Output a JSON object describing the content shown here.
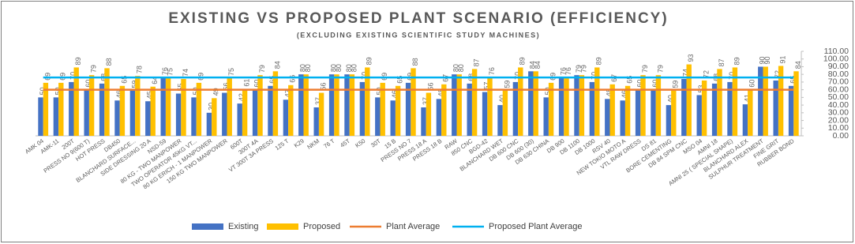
{
  "chart_data": {
    "type": "bar",
    "title": "EXISTING VS PROPOSED PLANT SCENARIO (EFFICIENCY)",
    "subtitle": "(EXCLUDING EXISTING SCIENTIFIC STUDY MACHINES)",
    "categories": [
      "AMK 04",
      "AMK-11",
      "200T",
      "PRESS NO 9(600 T)",
      "HOT PRESS",
      "DB450",
      "BLANCHARD SURFACE...",
      "SIDE DRESSING 20 A",
      "NSD-59",
      "80 KG - TWO MANPOWER",
      "TWO OPERATOR 45KG VT...",
      "80 KG ERICH - 1 MANPOWER",
      "150 KG TWO MANPOWER",
      "600T",
      "300T 4A",
      "VT 300T 3A PRESS",
      "125 T",
      "K29",
      "NKM",
      "76 T",
      "45T",
      "K50",
      "30T",
      "15 B",
      "PRESS NO 7",
      "PRESS 18 A",
      "PRESS 18 B",
      "RAW",
      "850 CNC",
      "BGD-42",
      "BLANCHARD WET",
      "DB 600 CNC",
      "DB 600 (30)",
      "DB 630 CHINA",
      "DB 900",
      "DB 1100",
      "DB 1000",
      "RSV 40",
      "NEW TOKIO MOTO A",
      "VTL RAW DRESS",
      "DS 81",
      "BORE CEMENTING",
      "DB 84 SPM CNC",
      "MSO 04",
      "AMNI 18",
      "AMNI 25 ( SPECIAL SHAPE)",
      "BLANCHARD ALEX",
      "SULPHUR TREATMENT",
      "FINE GRIT",
      "RUBBER BOND"
    ],
    "series": [
      {
        "name": "Existing",
        "color": "#4472c4",
        "values": [
          50,
          50,
          70,
          60,
          68,
          46,
          59,
          45,
          76,
          55,
          50,
          30,
          56,
          42,
          60,
          65,
          47,
          80,
          37,
          80,
          80,
          70,
          50,
          46,
          69,
          37,
          48,
          80,
          68,
          57,
          40,
          70,
          84,
          50,
          76,
          79,
          70,
          48,
          46,
          60,
          60,
          40,
          74,
          53,
          68,
          70,
          41,
          90,
          72,
          65
        ]
      },
      {
        "name": "Proposed",
        "color": "#ffc000",
        "values": [
          69,
          69,
          89,
          79,
          88,
          65,
          78,
          64,
          75,
          74,
          69,
          49,
          75,
          61,
          79,
          84,
          66,
          80,
          56,
          80,
          80,
          89,
          69,
          65,
          88,
          56,
          67,
          80,
          87,
          76,
          59,
          89,
          84,
          69,
          76,
          79,
          89,
          67,
          65,
          79,
          79,
          59,
          93,
          72,
          87,
          89,
          60,
          90,
          91,
          84
        ]
      }
    ],
    "lines": [
      {
        "name": "Plant Average",
        "color": "#ed7d31",
        "value": 60
      },
      {
        "name": "Proposed Plant Average",
        "color": "#00b0f0",
        "value": 76
      }
    ],
    "ylim": [
      0,
      110
    ],
    "yticks": [
      {
        "value": 0,
        "label": "0.00"
      },
      {
        "value": 10,
        "label": "10.00"
      },
      {
        "value": 20,
        "label": "20.00"
      },
      {
        "value": 30,
        "label": "30.00"
      },
      {
        "value": 40,
        "label": "40.00"
      },
      {
        "value": 50,
        "label": "50.00"
      },
      {
        "value": 60,
        "label": "60.00"
      },
      {
        "value": 70,
        "label": "70.00"
      },
      {
        "value": 80,
        "label": "80.00"
      },
      {
        "value": 90,
        "label": "90.00"
      },
      {
        "value": 100,
        "label": "100.00"
      },
      {
        "value": 110,
        "label": "110.00"
      }
    ],
    "legend": "bottom"
  }
}
